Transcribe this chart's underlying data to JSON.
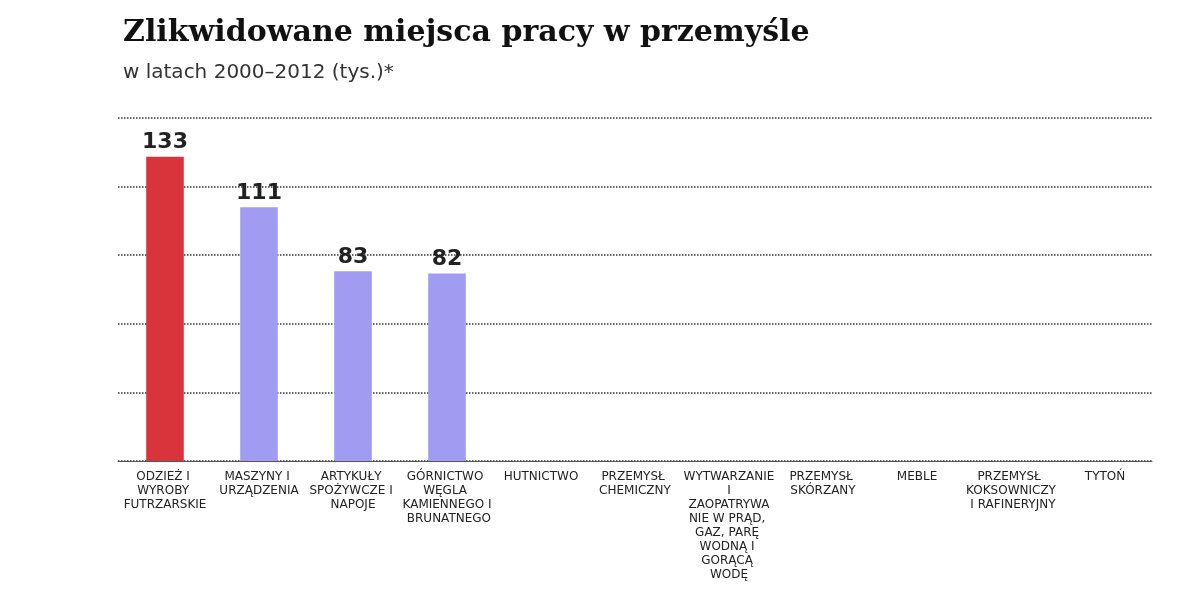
{
  "chart_data": {
    "type": "bar",
    "title": "Zlikwidowane miejsca pracy w przemyśle",
    "subtitle": "w latach 2000–2012 (tys.)*",
    "categories": [
      "ODZIEŻ I WYROBY FUTRZARSKIE",
      "MASZYNY I URZĄDZENIA",
      "ARTYKUŁY SPOŻYWCZE I NAPOJE",
      "GÓRNICTWO WĘGLA KAMIENNEGO I BRUNATNEGO",
      "HUTNICTWO",
      "PRZEMYSŁ CHEMICZNY",
      "WYTWARZANIE I ZAOPATRYWANIE W PRĄD, GAZ, PARĘ WODNĄ I GORĄCĄ WODĘ",
      "PRZEMYSŁ SKÓRZANY",
      "MEBLE",
      "PRZEMYSŁ KOKSOWNICZY I RAFINERYJNY",
      "TYTOŃ"
    ],
    "values": [
      133,
      111,
      83,
      82,
      null,
      null,
      null,
      null,
      null,
      null,
      null
    ],
    "colors": [
      "#d9343c",
      "#9f9cf2",
      "#9f9cf2",
      "#9f9cf2",
      "#9f9cf2",
      "#9f9cf2",
      "#9f9cf2",
      "#9f9cf2",
      "#9f9cf2",
      "#9f9cf2",
      "#9f9cf2"
    ],
    "ylim": [
      0,
      150
    ],
    "yticks": [
      {
        "value": 0,
        "label": null
      },
      {
        "value": 30,
        "label": null
      },
      {
        "value": 60,
        "label": null
      },
      {
        "value": 90,
        "label": null
      },
      {
        "value": 120,
        "label": null
      },
      {
        "value": 150,
        "label": null
      }
    ],
    "grid": "y",
    "data_labels": true,
    "tick_labels": "x"
  }
}
